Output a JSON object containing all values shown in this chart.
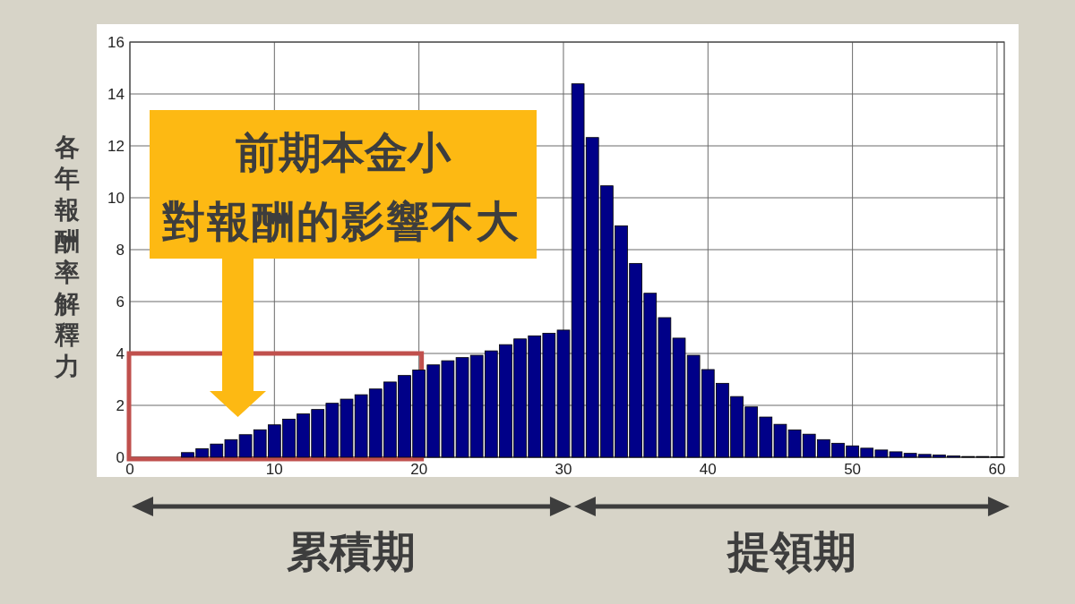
{
  "chart_data": {
    "type": "bar",
    "ylabel": "各年報酬率解釋力",
    "x": [
      4,
      5,
      6,
      7,
      8,
      9,
      10,
      11,
      12,
      13,
      14,
      15,
      16,
      17,
      18,
      19,
      20,
      21,
      22,
      23,
      24,
      25,
      26,
      27,
      28,
      29,
      30,
      31,
      32,
      33,
      34,
      35,
      36,
      37,
      38,
      39,
      40,
      41,
      42,
      43,
      44,
      45,
      46,
      47,
      48,
      49,
      50,
      51,
      52,
      53,
      54,
      55,
      56,
      57,
      58,
      59,
      60
    ],
    "values": [
      0.18,
      0.33,
      0.51,
      0.68,
      0.87,
      1.06,
      1.25,
      1.47,
      1.67,
      1.84,
      2.08,
      2.24,
      2.41,
      2.63,
      2.9,
      3.15,
      3.36,
      3.56,
      3.72,
      3.84,
      3.93,
      4.1,
      4.34,
      4.56,
      4.68,
      4.78,
      4.9,
      14.39,
      12.32,
      10.46,
      8.92,
      7.47,
      6.32,
      5.38,
      4.59,
      3.93,
      3.38,
      2.85,
      2.34,
      1.94,
      1.55,
      1.27,
      1.05,
      0.89,
      0.68,
      0.54,
      0.44,
      0.35,
      0.28,
      0.21,
      0.15,
      0.11,
      0.09,
      0.05,
      0.03,
      0.03,
      0.02
    ],
    "color": "#000088",
    "xlim": [
      0,
      60.5
    ],
    "ylim": [
      0,
      16
    ],
    "xticks": [
      0,
      10,
      20,
      30,
      40,
      50,
      60
    ],
    "yticks": [
      0,
      2,
      4,
      6,
      8,
      10,
      12,
      14,
      16
    ],
    "grid": true,
    "annotations": [
      "前期本金小",
      "對報酬的影響不大",
      "累積期",
      "提領期"
    ]
  }
}
